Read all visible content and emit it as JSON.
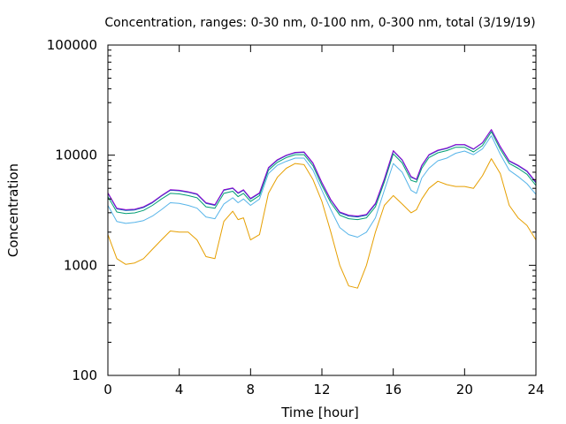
{
  "chart_data": {
    "type": "line",
    "title": "Concentration, ranges: 0-30 nm, 0-100 nm, 0-300 nm, total (3/19/19)",
    "xlabel": "Time [hour]",
    "ylabel": "Concentration",
    "xlim": [
      0,
      24
    ],
    "ylim": [
      100,
      100000
    ],
    "yscale": "log",
    "grid": false,
    "legend": "none",
    "x_ticks": [
      0,
      4,
      8,
      12,
      16,
      20,
      24
    ],
    "x_tick_labels": [
      "0",
      "4",
      "8",
      "12",
      "16",
      "20",
      "24"
    ],
    "y_ticks": [
      100,
      1000,
      10000,
      100000
    ],
    "y_tick_labels": [
      "100",
      "1000",
      "10000",
      "100000"
    ],
    "x": [
      0,
      0.5,
      1,
      1.5,
      2,
      2.5,
      3,
      3.5,
      4,
      4.5,
      5,
      5.5,
      6,
      6.5,
      7,
      7.3,
      7.6,
      8,
      8.5,
      9,
      9.5,
      10,
      10.5,
      11,
      11.5,
      12,
      12.5,
      13,
      13.5,
      14,
      14.5,
      15,
      15.5,
      16,
      16.5,
      17,
      17.3,
      17.6,
      18,
      18.5,
      19,
      19.5,
      20,
      20.5,
      21,
      21.5,
      22,
      22.5,
      23,
      23.5,
      24
    ],
    "series": [
      {
        "color": "#e69f00",
        "values": [
          1900,
          1150,
          1020,
          1050,
          1150,
          1400,
          1700,
          2050,
          2000,
          2000,
          1700,
          1200,
          1150,
          2500,
          3100,
          2600,
          2700,
          1700,
          1900,
          4500,
          6300,
          7600,
          8400,
          8200,
          6000,
          3800,
          2000,
          1000,
          650,
          620,
          1000,
          2000,
          3500,
          4300,
          3600,
          3000,
          3200,
          4000,
          5000,
          5800,
          5400,
          5200,
          5200,
          5000,
          6500,
          9300,
          6800,
          3500,
          2700,
          2300,
          1700
        ]
      },
      {
        "color": "#56b4e9",
        "values": [
          3500,
          2500,
          2400,
          2450,
          2550,
          2800,
          3200,
          3700,
          3650,
          3500,
          3300,
          2750,
          2650,
          3600,
          4100,
          3700,
          4000,
          3500,
          4000,
          6800,
          8100,
          8800,
          9400,
          9400,
          7300,
          4800,
          3200,
          2200,
          1900,
          1800,
          2000,
          2700,
          4800,
          8400,
          7000,
          4800,
          4500,
          6200,
          7600,
          8900,
          9400,
          10400,
          10900,
          10100,
          11400,
          15000,
          10200,
          7300,
          6400,
          5500,
          4400
        ]
      },
      {
        "color": "#009e73",
        "values": [
          4200,
          3050,
          2950,
          2990,
          3150,
          3500,
          4000,
          4500,
          4450,
          4300,
          4100,
          3400,
          3300,
          4500,
          4700,
          4200,
          4500,
          3800,
          4300,
          7300,
          8600,
          9500,
          10100,
          10100,
          8000,
          5300,
          3700,
          2850,
          2650,
          2600,
          2700,
          3400,
          5700,
          10300,
          8500,
          5900,
          5700,
          7600,
          9500,
          10500,
          11000,
          11800,
          11800,
          10700,
          12200,
          16300,
          11300,
          8400,
          7600,
          6700,
          5300
        ]
      },
      {
        "color": "#0072b2",
        "values": [
          4500,
          3250,
          3150,
          3180,
          3350,
          3700,
          4250,
          4800,
          4750,
          4600,
          4400,
          3650,
          3500,
          4800,
          5000,
          4500,
          4800,
          4000,
          4500,
          7600,
          9000,
          9900,
          10500,
          10600,
          8400,
          5600,
          3900,
          3000,
          2800,
          2750,
          2850,
          3600,
          6000,
          10900,
          9000,
          6300,
          6000,
          8000,
          10000,
          11000,
          11500,
          12400,
          12400,
          11300,
          12900,
          17000,
          11900,
          8800,
          8000,
          7100,
          5600
        ]
      },
      {
        "color": "#9400d3",
        "values": [
          4550,
          3300,
          3200,
          3230,
          3400,
          3750,
          4300,
          4850,
          4800,
          4650,
          4450,
          3700,
          3550,
          4850,
          5050,
          4550,
          4850,
          4050,
          4550,
          7700,
          9100,
          10000,
          10600,
          10700,
          8500,
          5650,
          3950,
          3050,
          2850,
          2800,
          2900,
          3650,
          6100,
          11000,
          9100,
          6400,
          6050,
          8100,
          10100,
          11100,
          11600,
          12500,
          12500,
          11400,
          13000,
          17100,
          12000,
          8900,
          8100,
          7200,
          5700
        ]
      }
    ]
  }
}
